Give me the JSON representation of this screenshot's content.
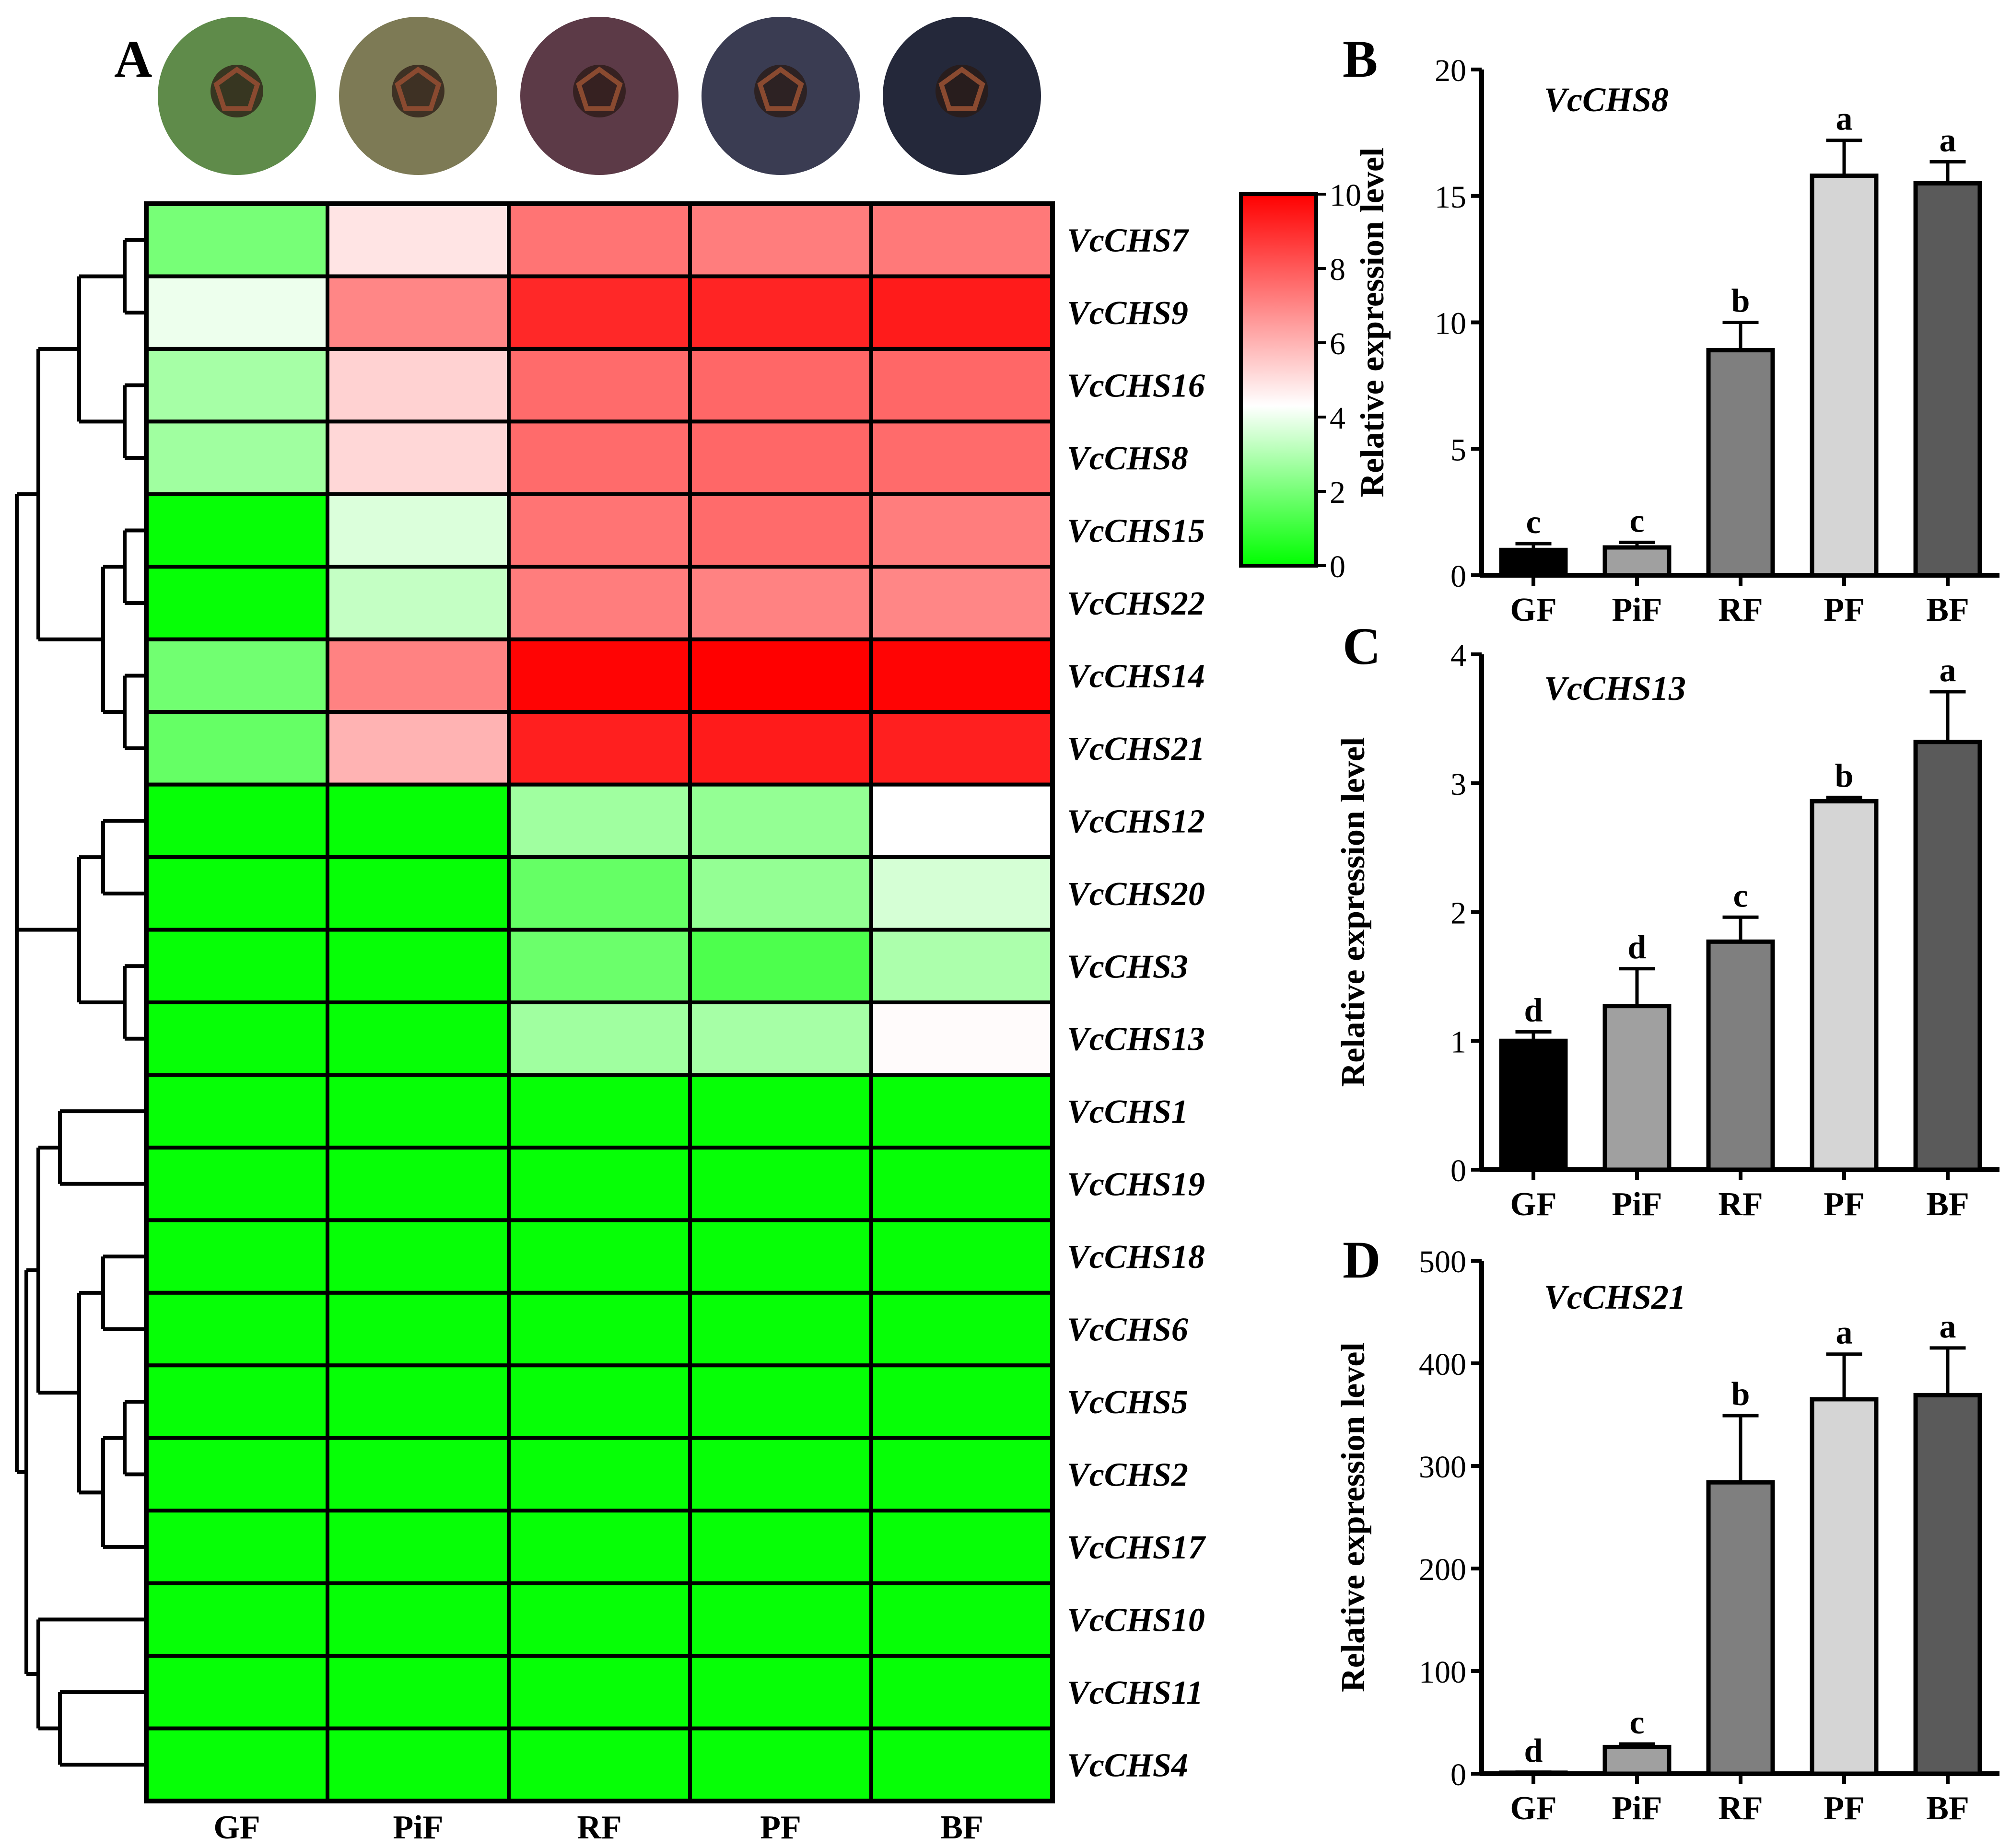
{
  "figure": {
    "panel_labels": [
      "A",
      "B",
      "C",
      "D"
    ],
    "fruit_images": [
      {
        "stage": "GF",
        "color": "#5f8b4a"
      },
      {
        "stage": "PiF",
        "color": "#7d7a55"
      },
      {
        "stage": "RF",
        "color": "#5c3a47"
      },
      {
        "stage": "PF",
        "color": "#3a3c52"
      },
      {
        "stage": "BF",
        "color": "#24283a"
      }
    ]
  },
  "chart_data": [
    {
      "type": "heatmap",
      "panel": "A",
      "columns": [
        "GF",
        "PiF",
        "RF",
        "PF",
        "BF"
      ],
      "rows": [
        "VcCHS7",
        "VcCHS9",
        "VcCHS16",
        "VcCHS8",
        "VcCHS15",
        "VcCHS22",
        "VcCHS14",
        "VcCHS21",
        "VcCHS12",
        "VcCHS20",
        "VcCHS3",
        "VcCHS13",
        "VcCHS1",
        "VcCHS19",
        "VcCHS18",
        "VcCHS6",
        "VcCHS5",
        "VcCHS2",
        "VcCHS17",
        "VcCHS10",
        "VcCHS11",
        "VcCHS4"
      ],
      "values": [
        [
          2.0,
          4.9,
          7.4,
          7.2,
          7.3
        ],
        [
          4.0,
          7.0,
          9.1,
          9.2,
          9.4
        ],
        [
          2.8,
          5.3,
          7.6,
          7.7,
          7.7
        ],
        [
          2.7,
          5.2,
          7.6,
          7.7,
          7.6
        ],
        [
          0.1,
          3.7,
          7.4,
          7.6,
          7.2
        ],
        [
          0.1,
          3.3,
          7.2,
          7.1,
          7.0
        ],
        [
          1.9,
          7.1,
          9.9,
          10.0,
          9.9
        ],
        [
          1.7,
          6.0,
          9.3,
          9.4,
          9.3
        ],
        [
          0.1,
          0.1,
          2.7,
          2.5,
          4.3
        ],
        [
          0.1,
          0.1,
          1.7,
          2.5,
          3.6
        ],
        [
          0.1,
          0.1,
          1.8,
          1.3,
          2.9
        ],
        [
          0.1,
          0.1,
          2.7,
          2.8,
          4.4
        ],
        [
          0.1,
          0.1,
          0.1,
          0.1,
          0.1
        ],
        [
          0.1,
          0.1,
          0.1,
          0.1,
          0.1
        ],
        [
          0.1,
          0.1,
          0.1,
          0.1,
          0.1
        ],
        [
          0.1,
          0.1,
          0.1,
          0.1,
          0.1
        ],
        [
          0.1,
          0.1,
          0.1,
          0.1,
          0.1
        ],
        [
          0.1,
          0.1,
          0.1,
          0.1,
          0.1
        ],
        [
          0.1,
          0.1,
          0.1,
          0.1,
          0.1
        ],
        [
          0.1,
          0.1,
          0.1,
          0.1,
          0.1
        ],
        [
          0.1,
          0.1,
          0.1,
          0.1,
          0.1
        ],
        [
          0.1,
          0.1,
          0.1,
          0.1,
          0.1
        ]
      ],
      "colorbar": {
        "min": 0,
        "max": 10,
        "ticks": [
          "0",
          "2",
          "4",
          "6",
          "8",
          "10"
        ],
        "low": "#00ff00",
        "mid": "#ffffff",
        "high": "#ff0000",
        "mid_value": 4.3
      },
      "dendrogram": {
        "side": "left",
        "linkage_note": "row clustering tree"
      }
    },
    {
      "type": "bar",
      "panel": "B",
      "gene": "VcCHS8",
      "categories": [
        "GF",
        "PiF",
        "RF",
        "PF",
        "BF"
      ],
      "values": [
        1.0,
        1.1,
        8.9,
        15.8,
        15.5
      ],
      "errors": [
        0.25,
        0.2,
        1.1,
        1.4,
        0.85
      ],
      "letters": [
        "c",
        "c",
        "b",
        "a",
        "a"
      ],
      "colors": [
        "#000000",
        "#a0a0a0",
        "#7f7f7f",
        "#d5d5d5",
        "#5a5a5a"
      ],
      "ylabel": "Relative  expression level",
      "ylim": [
        0,
        20
      ],
      "yticks": [
        "0",
        "5",
        "10",
        "15",
        "20"
      ]
    },
    {
      "type": "bar",
      "panel": "C",
      "gene": "VcCHS13",
      "categories": [
        "GF",
        "PiF",
        "RF",
        "PF",
        "BF"
      ],
      "values": [
        1.0,
        1.27,
        1.77,
        2.86,
        3.32
      ],
      "errors": [
        0.07,
        0.29,
        0.19,
        0.03,
        0.39
      ],
      "letters": [
        "d",
        "d",
        "c",
        "b",
        "a"
      ],
      "colors": [
        "#000000",
        "#a0a0a0",
        "#7f7f7f",
        "#d5d5d5",
        "#5a5a5a"
      ],
      "ylabel": "Relative  expression level",
      "ylim": [
        0,
        4
      ],
      "yticks": [
        "0",
        "1",
        "2",
        "3",
        "4"
      ]
    },
    {
      "type": "bar",
      "panel": "D",
      "gene": "VcCHS21",
      "categories": [
        "GF",
        "PiF",
        "RF",
        "PF",
        "BF"
      ],
      "values": [
        1,
        26,
        284,
        365,
        369
      ],
      "errors": [
        0.5,
        3,
        65,
        44,
        46
      ],
      "letters": [
        "d",
        "c",
        "b",
        "a",
        "a"
      ],
      "colors": [
        "#000000",
        "#a0a0a0",
        "#7f7f7f",
        "#d5d5d5",
        "#5a5a5a"
      ],
      "ylabel": "Relative  expression level",
      "ylim": [
        0,
        500
      ],
      "yticks": [
        "0",
        "100",
        "200",
        "300",
        "400",
        "500"
      ]
    }
  ]
}
